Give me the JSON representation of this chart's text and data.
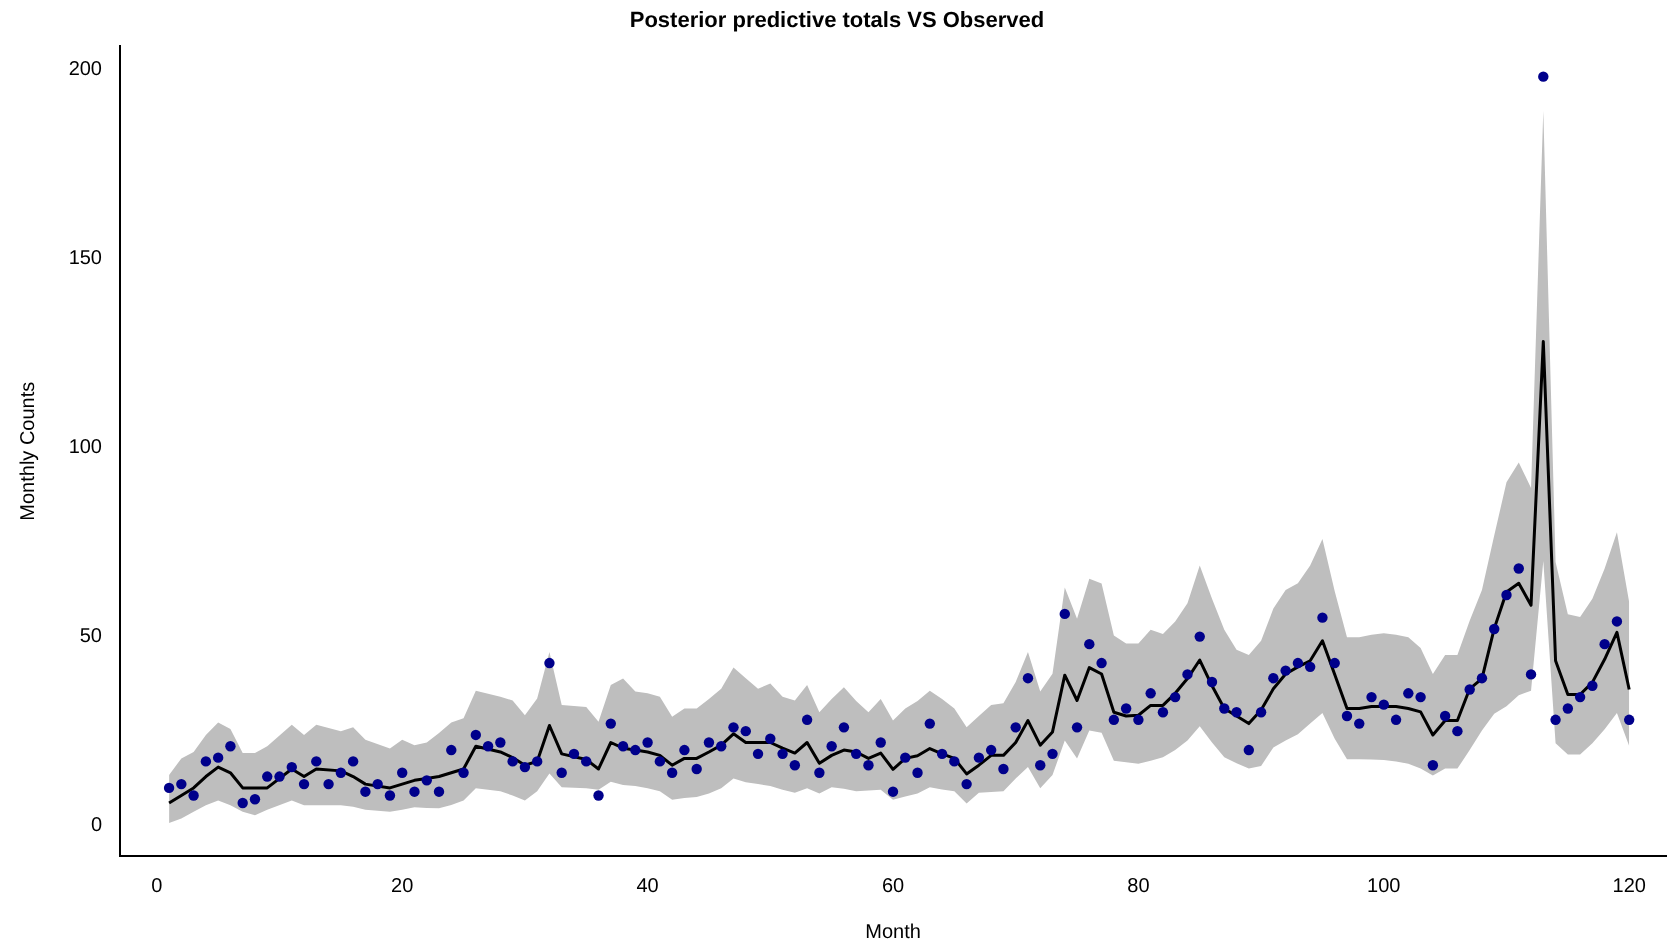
{
  "chart_data": {
    "type": "line",
    "title": "Posterior predictive totals VS Observed",
    "xlabel": "Month",
    "ylabel": "Monthly Counts",
    "xlim": [
      -3,
      123
    ],
    "xticks": [
      0,
      20,
      40,
      60,
      80,
      100,
      120
    ],
    "ylim": [
      -8,
      206
    ],
    "yticks": [
      0,
      50,
      100,
      150,
      200
    ],
    "grid": false,
    "legend": false,
    "series": [
      {
        "color": "#000000",
        "marker": "none",
        "x": [
          1,
          2,
          3,
          4,
          5,
          6,
          7,
          8,
          9,
          11,
          12,
          13,
          15,
          16,
          17,
          19,
          20,
          21,
          22,
          23,
          24,
          25,
          26,
          28,
          29,
          30,
          31,
          32,
          33,
          35,
          36,
          37,
          38,
          39,
          40,
          41,
          42,
          43,
          44,
          45,
          46,
          47,
          48,
          49,
          50,
          51,
          52,
          53,
          54,
          55,
          56,
          57,
          58,
          59,
          60,
          61,
          62,
          63,
          64,
          65,
          66,
          67,
          68,
          69,
          70,
          71,
          72,
          73,
          74,
          75,
          76,
          77,
          78,
          79,
          80,
          81,
          82,
          83,
          84,
          85,
          86,
          87,
          88,
          89,
          90,
          91,
          92,
          93,
          94,
          95,
          96,
          97,
          98,
          99,
          100,
          101,
          102,
          103,
          104,
          105,
          106,
          107,
          108,
          109,
          110,
          111,
          112,
          113,
          114,
          115,
          116,
          117,
          118,
          119,
          120
        ],
        "values": [
          6,
          8,
          10,
          13,
          15.5,
          14,
          10,
          10,
          10,
          15,
          13,
          15,
          14.5,
          13,
          11,
          10,
          11,
          12,
          12.5,
          13,
          14,
          15,
          21,
          19.5,
          18,
          16,
          17,
          26.5,
          19,
          17.5,
          15,
          22,
          20.5,
          20,
          19.5,
          18.6,
          16,
          17.8,
          17.8,
          19.5,
          21.3,
          24.3,
          22,
          22,
          22,
          20.5,
          19.2,
          22,
          16.5,
          18.6,
          20,
          19.5,
          17.8,
          19.2,
          14.9,
          17.8,
          18.5,
          20.4,
          19,
          17.8,
          13.7,
          16,
          18.6,
          18.6,
          22,
          27.8,
          21.3,
          24.8,
          39.8,
          33.1,
          41.8,
          40.1,
          30,
          29,
          29.2,
          31.8,
          31.8,
          35,
          38.9,
          43.8,
          37,
          31,
          29,
          27,
          30.6,
          36.2,
          40.1,
          42,
          43.6,
          48.9,
          40,
          31,
          31,
          31.5,
          31.5,
          31.5,
          31,
          30.1,
          24,
          27.8,
          27.8,
          36.2,
          38.9,
          52.1,
          61.8,
          64.1,
          58.3,
          128,
          43.6,
          34.7,
          34.7,
          37.9,
          44,
          51.1,
          36
        ],
        "lower": [
          0.7,
          1.9,
          3.7,
          5.4,
          6.7,
          5.4,
          3.7,
          2.8,
          4.2,
          6.7,
          5.4,
          5.4,
          5.4,
          5,
          4.2,
          3.7,
          4.2,
          4.9,
          4.7,
          4.6,
          5.5,
          6.7,
          9.9,
          9.1,
          8,
          6.7,
          9.1,
          13.8,
          10.2,
          9.9,
          9.5,
          11.6,
          10.8,
          10.5,
          9.9,
          9.1,
          6.9,
          7.3,
          7.6,
          8.5,
          9.9,
          12.5,
          11.5,
          11,
          10.5,
          9.5,
          8.7,
          9.9,
          8.5,
          10.2,
          9.8,
          9.1,
          9.3,
          9.5,
          6.9,
          7.7,
          8.5,
          10.2,
          9.6,
          9.1,
          5.9,
          8.7,
          8.9,
          9.1,
          12.5,
          15.5,
          9.9,
          13.4,
          22.5,
          17.8,
          25.2,
          24.6,
          17.2,
          16.8,
          16.4,
          17.2,
          18.1,
          20,
          22.5,
          26.3,
          22,
          18.1,
          16.5,
          15.1,
          15.8,
          20.7,
          22.5,
          24.2,
          27,
          29.8,
          23,
          17.6,
          17.6,
          17.5,
          17.4,
          17,
          16.4,
          15.1,
          13.3,
          15.1,
          15.1,
          20,
          25.2,
          29.6,
          31.6,
          34.5,
          35.7,
          70,
          21.8,
          18.8,
          18.8,
          21.8,
          25.5,
          29.8,
          21.1
        ],
        "upper": [
          13.4,
          17.8,
          19.5,
          24,
          27.3,
          25.6,
          19.2,
          19.2,
          21,
          26.7,
          24,
          26.7,
          25,
          26,
          22.7,
          20.4,
          22.7,
          21.3,
          22,
          24.5,
          27.3,
          28.4,
          35.7,
          34.1,
          33.1,
          29.2,
          33.6,
          45.9,
          31.9,
          31.4,
          27.5,
          37.2,
          38.9,
          35.5,
          35,
          34.1,
          28.8,
          31,
          31,
          33.5,
          36.2,
          41.8,
          39,
          36.2,
          37.6,
          34.1,
          33.1,
          37.2,
          30,
          33.5,
          36.6,
          33,
          30,
          33.5,
          27.8,
          31,
          33,
          35.7,
          33.5,
          31,
          26,
          29,
          31.9,
          32.4,
          38,
          45.9,
          35.5,
          40.2,
          63,
          54.7,
          65.3,
          64,
          50.3,
          48.2,
          48.2,
          51.8,
          50.7,
          54,
          58.8,
          68.8,
          60,
          51.8,
          46.5,
          45.1,
          48.9,
          57.4,
          62.3,
          64.1,
          68.8,
          75.8,
          62,
          49.8,
          49.8,
          50.5,
          50.9,
          50.5,
          49.8,
          47,
          40.1,
          45.1,
          45.1,
          54.2,
          62.3,
          76.7,
          90.8,
          96,
          89.3,
          189,
          69.7,
          55.9,
          55.2,
          60,
          68,
          77.6,
          59.1
        ]
      },
      {
        "type": "scatter",
        "color": "#00008b",
        "marker": "circle",
        "x": [
          1,
          2,
          3,
          4,
          5,
          6,
          7,
          8,
          9,
          10,
          11,
          12,
          13,
          14,
          15,
          16,
          17,
          18,
          19,
          20,
          21,
          22,
          23,
          24,
          25,
          26,
          27,
          28,
          29,
          30,
          31,
          32,
          33,
          34,
          35,
          36,
          37,
          38,
          39,
          40,
          41,
          42,
          43,
          44,
          45,
          46,
          47,
          48,
          49,
          50,
          51,
          52,
          53,
          54,
          55,
          56,
          57,
          58,
          59,
          60,
          61,
          62,
          63,
          64,
          65,
          66,
          67,
          68,
          69,
          70,
          71,
          72,
          73,
          74,
          75,
          76,
          77,
          78,
          79,
          80,
          81,
          82,
          83,
          84,
          85,
          86,
          87,
          88,
          89,
          90,
          91,
          92,
          93,
          94,
          95,
          96,
          97,
          98,
          99,
          100,
          101,
          102,
          103,
          104,
          105,
          106,
          107,
          108,
          109,
          110,
          111,
          112,
          113,
          114,
          115,
          116,
          117,
          118,
          119,
          120
        ],
        "values": [
          10,
          11,
          8,
          17,
          18,
          21,
          6,
          7,
          13,
          13,
          15.5,
          11,
          17,
          11,
          14,
          17,
          9,
          11,
          8,
          14,
          9,
          12,
          9,
          20,
          14,
          24,
          21,
          22,
          17,
          15.5,
          17,
          43,
          14,
          19,
          17,
          8,
          27,
          21,
          20,
          22,
          17,
          14,
          20,
          15,
          22,
          21,
          26,
          25,
          19,
          23,
          19,
          16,
          28,
          14,
          21,
          26,
          19,
          16,
          22,
          9,
          18,
          14,
          27,
          19,
          17,
          11,
          18,
          20,
          15,
          26,
          39,
          16,
          19,
          56,
          26,
          48,
          43,
          28,
          31,
          28,
          35,
          30,
          34,
          40,
          50,
          38,
          31,
          30,
          20,
          30,
          39,
          41,
          43,
          42,
          55,
          43,
          29,
          27,
          34,
          32,
          28,
          35,
          34,
          16,
          29,
          25,
          36,
          39,
          52,
          61,
          68,
          40,
          198,
          28,
          31,
          34,
          37,
          48,
          54,
          28
        ]
      }
    ]
  }
}
